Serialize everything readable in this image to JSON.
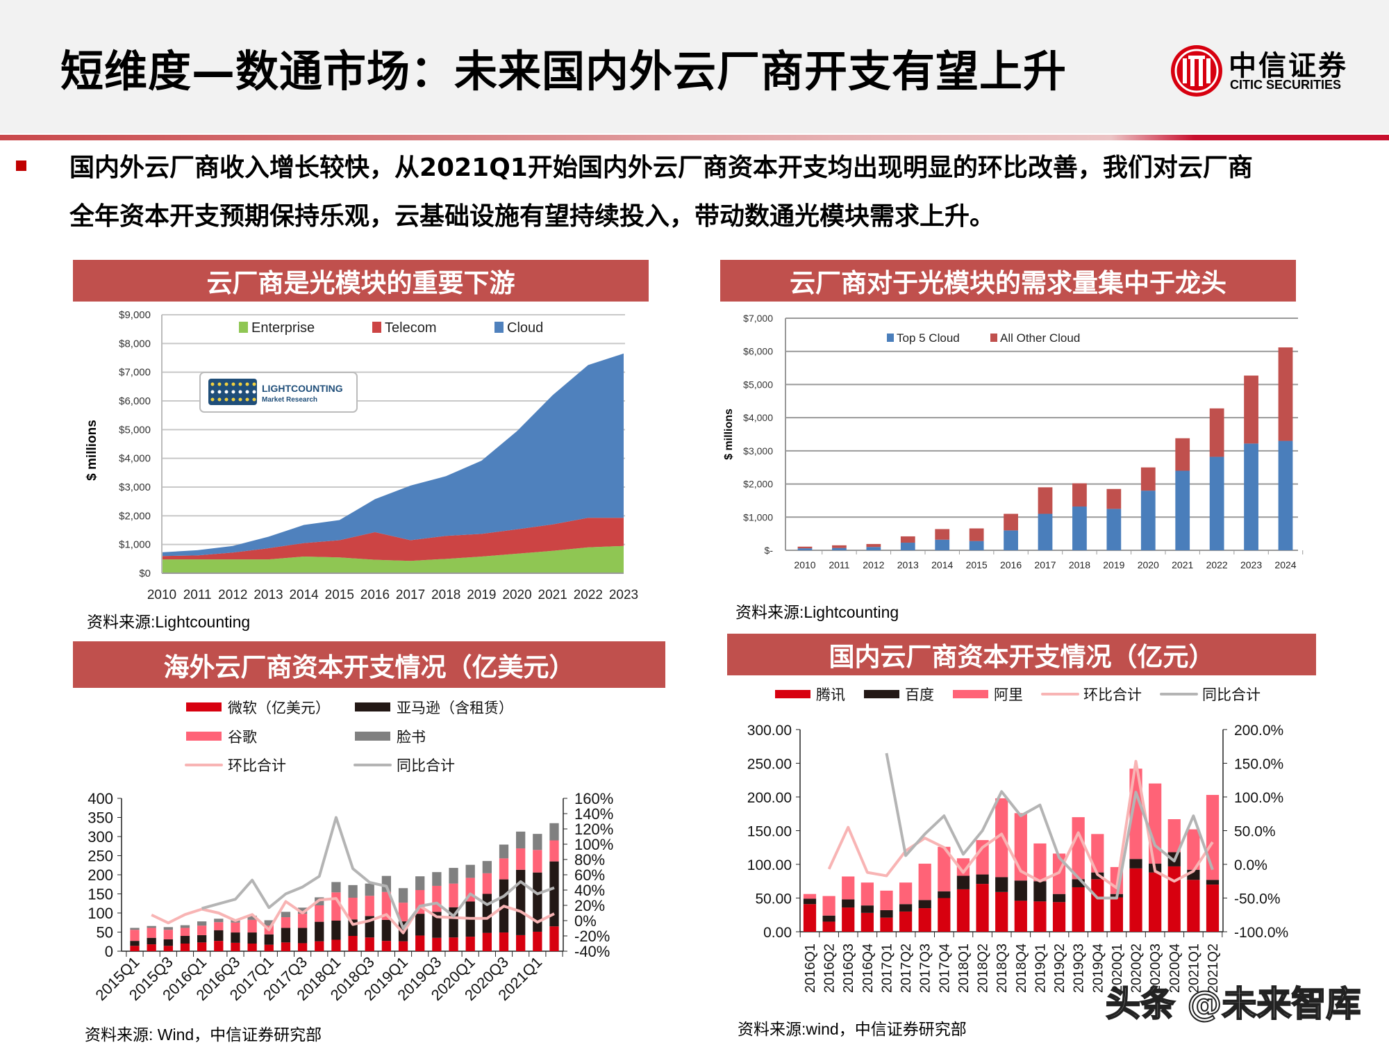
{
  "header": {
    "title": "短维度—数通市场：未来国内外云厂商开支有望上升",
    "logo": {
      "cn": "中信证券",
      "en": "CITIC SECURITIES",
      "emblem": "CITIC"
    }
  },
  "summary": {
    "line1": "国内外云厂商收入增长较快，从2021Q1开始国内外云厂商资本开支均出现明显的环比改善，我们对云厂商",
    "line2": "全年资本开支预期保持乐观，云基础设施有望持续投入，带动数通光模块需求上升。"
  },
  "panels": [
    {
      "title": "云厂商是光模块的重要下游",
      "source": "资料来源:Lightcounting"
    },
    {
      "title": "云厂商对于光模块的需求量集中于龙头",
      "source": "资料来源:Lightcounting"
    },
    {
      "title": "海外云厂商资本开支情况（亿美元）",
      "source": "资料来源: Wind，中信证券研究部"
    },
    {
      "title": "国内云厂商资本开支情况（亿元）",
      "source": "资料来源:wind，中信证券研究部"
    }
  ],
  "watermark": "头条 @未来智库",
  "colors": {
    "accent": "#c0504d",
    "brand_red": "#c8102e"
  },
  "chart_data": [
    {
      "type": "area",
      "stacked": true,
      "ylabel": "$ millions",
      "ylim": [
        0,
        9000
      ],
      "y_ticks": [
        "$0",
        "$1,000",
        "$2,000",
        "$3,000",
        "$4,000",
        "$5,000",
        "$6,000",
        "$7,000",
        "$8,000",
        "$9,000"
      ],
      "categories": [
        "2010",
        "2011",
        "2012",
        "2013",
        "2014",
        "2015",
        "2016",
        "2017",
        "2018",
        "2019",
        "2020",
        "2021",
        "2022",
        "2023"
      ],
      "legend_position": "top",
      "grid": true,
      "watermark_logo": {
        "name": "LIGHTCOUNTING",
        "sub": "Market Research"
      },
      "series": [
        {
          "name": "Enterprise",
          "color": "#8fc653",
          "values": [
            480,
            480,
            480,
            480,
            580,
            550,
            470,
            430,
            500,
            580,
            680,
            780,
            900,
            950
          ]
        },
        {
          "name": "Telecom",
          "color": "#cc4444",
          "values": [
            120,
            140,
            240,
            390,
            470,
            600,
            960,
            720,
            800,
            790,
            850,
            920,
            1030,
            980
          ]
        },
        {
          "name": "Cloud",
          "color": "#4f81bd",
          "values": [
            130,
            180,
            230,
            400,
            630,
            700,
            1150,
            1900,
            2080,
            2550,
            3420,
            4500,
            5320,
            5720
          ]
        }
      ]
    },
    {
      "type": "bar",
      "stacked": true,
      "ylabel": "$ millions",
      "ylim": [
        0,
        7000
      ],
      "y_ticks": [
        "$-",
        "$1,000",
        "$2,000",
        "$3,000",
        "$4,000",
        "$5,000",
        "$6,000",
        "$7,000"
      ],
      "categories": [
        "2010",
        "2011",
        "2012",
        "2013",
        "2014",
        "2015",
        "2016",
        "2017",
        "2018",
        "2019",
        "2020",
        "2021",
        "2022",
        "2023",
        "2024"
      ],
      "legend_position": "top",
      "grid": true,
      "series": [
        {
          "name": "Top 5 Cloud",
          "color": "#4a7ebb",
          "values": [
            60,
            70,
            100,
            230,
            320,
            280,
            600,
            1100,
            1320,
            1250,
            1800,
            2400,
            2820,
            3220,
            3300
          ]
        },
        {
          "name": "All Other Cloud",
          "color": "#c0504d",
          "values": [
            50,
            80,
            90,
            190,
            320,
            380,
            500,
            800,
            700,
            600,
            700,
            980,
            1460,
            2050,
            2820
          ]
        }
      ]
    },
    {
      "type": "bar",
      "stacked": true,
      "ylim": [
        0,
        400
      ],
      "y_ticks": [
        "0",
        "50",
        "100",
        "150",
        "200",
        "250",
        "300",
        "350",
        "400"
      ],
      "y2lim": [
        -40,
        160
      ],
      "y2_ticks": [
        "-40%",
        "-20%",
        "0%",
        "20%",
        "40%",
        "60%",
        "80%",
        "100%",
        "120%",
        "140%",
        "160%"
      ],
      "x_tick_labels": [
        "2015Q1",
        "2015Q3",
        "2016Q1",
        "2016Q3",
        "2017Q1",
        "2017Q3",
        "2018Q1",
        "2018Q3",
        "2019Q1",
        "2019Q3",
        "2020Q1",
        "2020Q3",
        "2021Q1"
      ],
      "legend_position": "top",
      "series": [
        {
          "name": "微软（亿美元）",
          "color": "#d7000f",
          "values": [
            14,
            18,
            14,
            20,
            23,
            27,
            22,
            20,
            17,
            23,
            21,
            26,
            30,
            40,
            36,
            27,
            26,
            41,
            35,
            36,
            38,
            48,
            49,
            42,
            51,
            65
          ]
        },
        {
          "name": "亚马逊（含租赁）",
          "color": "#231815",
          "values": [
            13,
            17,
            17,
            20,
            19,
            28,
            27,
            29,
            27,
            38,
            40,
            51,
            50,
            43,
            56,
            55,
            52,
            57,
            68,
            79,
            92,
            102,
            139,
            171,
            155,
            170
          ]
        },
        {
          "name": "谷歌",
          "color": "#ff6377",
          "values": [
            29,
            26,
            25,
            21,
            25,
            21,
            26,
            33,
            23,
            28,
            37,
            43,
            74,
            57,
            53,
            73,
            49,
            62,
            68,
            62,
            62,
            54,
            55,
            56,
            59,
            55
          ]
        },
        {
          "name": "脸书",
          "color": "#808080",
          "values": [
            5,
            5,
            7,
            7,
            11,
            9,
            8,
            11,
            14,
            14,
            16,
            21,
            27,
            33,
            32,
            42,
            38,
            36,
            36,
            41,
            34,
            32,
            36,
            44,
            42,
            45
          ]
        }
      ],
      "lines": [
        {
          "name": "环比合计",
          "color": "#f8b4b4",
          "axis": "right",
          "values": [
            null,
            7.5,
            -3,
            8,
            15,
            10,
            0,
            8,
            -12,
            25,
            10,
            27,
            29,
            -5,
            0,
            8,
            -16,
            19,
            5,
            4,
            3,
            3,
            19,
            12,
            -2,
            9
          ]
        },
        {
          "name": "同比合计",
          "color": "#b4b4b4",
          "axis": "right",
          "values": [
            null,
            null,
            null,
            null,
            16,
            22,
            28,
            53,
            17,
            35,
            44,
            58,
            135,
            68,
            50,
            45,
            -10,
            19,
            23,
            6,
            35,
            21,
            32,
            51,
            35,
            43
          ]
        }
      ]
    },
    {
      "type": "bar",
      "stacked": true,
      "ylim": [
        0,
        300
      ],
      "y_ticks": [
        "0.00",
        "50.00",
        "100.00",
        "150.00",
        "200.00",
        "250.00",
        "300.00"
      ],
      "y2lim": [
        -100,
        200
      ],
      "y2_ticks": [
        "-100.0%",
        "-50.0%",
        "0.0%",
        "50.0%",
        "100.0%",
        "150.0%",
        "200.0%"
      ],
      "categories": [
        "2016Q1",
        "2016Q2",
        "2016Q3",
        "2016Q4",
        "2017Q1",
        "2017Q2",
        "2017Q3",
        "2017Q4",
        "2018Q1",
        "2018Q2",
        "2018Q3",
        "2018Q4",
        "2019Q1",
        "2019Q2",
        "2019Q3",
        "2019Q4",
        "2020Q1",
        "2020Q2",
        "2020Q3",
        "2020Q4",
        "2021Q1",
        "2021Q2"
      ],
      "legend_position": "top",
      "series": [
        {
          "name": "腾讯",
          "color": "#d7000f",
          "values": [
            41,
            15,
            36,
            28,
            21,
            30,
            35,
            50,
            63,
            71,
            59,
            46,
            45,
            44,
            66,
            78,
            51,
            94,
            88,
            97,
            77,
            70
          ]
        },
        {
          "name": "百度",
          "color": "#231815",
          "values": [
            8,
            9,
            12,
            11,
            11,
            11,
            12,
            10,
            20,
            14,
            22,
            30,
            30,
            12,
            12,
            10,
            5,
            14,
            13,
            21,
            15,
            7
          ]
        },
        {
          "name": "阿里",
          "color": "#ff6377",
          "values": [
            7,
            29,
            34,
            34,
            29,
            32,
            54,
            66,
            26,
            51,
            117,
            100,
            56,
            60,
            92,
            57,
            40,
            134,
            119,
            49,
            60,
            126
          ]
        }
      ],
      "lines": [
        {
          "name": "环比合计",
          "color": "#f8b4b4",
          "axis": "right",
          "values": [
            null,
            -7,
            55,
            -12,
            -17,
            20,
            39,
            25,
            -12,
            25,
            45,
            -10,
            -25,
            -12,
            47,
            -15,
            -35,
            153,
            -10,
            -25,
            -10,
            33
          ]
        },
        {
          "name": "同比合计",
          "color": "#b4b4b4",
          "axis": "right",
          "values": [
            null,
            null,
            null,
            null,
            165,
            13,
            45,
            72,
            15,
            50,
            108,
            72,
            88,
            10,
            -20,
            -50,
            -50,
            107,
            28,
            5,
            72,
            -8
          ]
        }
      ]
    }
  ]
}
